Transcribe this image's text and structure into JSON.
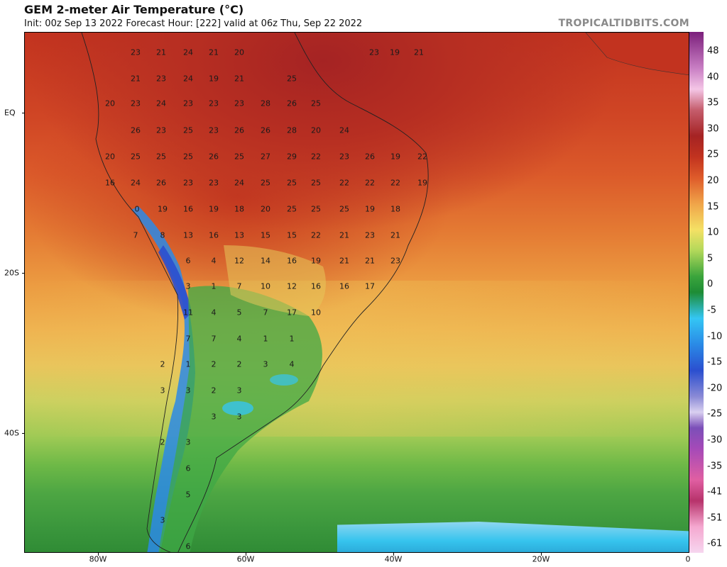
{
  "header": {
    "title": "GEM 2-meter Air Temperature (°C)",
    "subtitle": "Init: 00z Sep 13 2022   Forecast Hour: [222]   valid at 06z Thu, Sep 22 2022",
    "credit": "TROPICALTIDBITS.COM"
  },
  "axes": {
    "lat_labels": [
      "EQ",
      "20S",
      "40S"
    ],
    "lon_labels": [
      "80W",
      "60W",
      "40W",
      "20W",
      "0"
    ]
  },
  "colorbar": {
    "labels": [
      "48",
      "40",
      "35",
      "30",
      "25",
      "20",
      "15",
      "10",
      "5",
      "0",
      "-5",
      "-10",
      "-15",
      "-20",
      "-25",
      "-30",
      "-35",
      "-41",
      "-51",
      "-61"
    ]
  },
  "map": {
    "colors": {
      "hot": "#a52323",
      "warm": "#e47a33",
      "mild": "#efb451",
      "cool": "#4da643",
      "cold": "#36c4ee",
      "frigid": "#2b4fcf"
    },
    "temp_labels": [
      "23",
      "21",
      "24",
      "21",
      "20",
      "23",
      "19",
      "21",
      "21",
      "23",
      "24",
      "19",
      "21",
      "25",
      "20",
      "23",
      "24",
      "23",
      "23",
      "23",
      "28",
      "26",
      "25",
      "26",
      "23",
      "25",
      "23",
      "26",
      "26",
      "28",
      "20",
      "24",
      "20",
      "25",
      "25",
      "25",
      "26",
      "25",
      "27",
      "29",
      "22",
      "23",
      "26",
      "19",
      "22",
      "16",
      "24",
      "26",
      "23",
      "23",
      "24",
      "25",
      "25",
      "25",
      "22",
      "22",
      "22",
      "19",
      "0",
      "19",
      "16",
      "19",
      "18",
      "20",
      "25",
      "25",
      "25",
      "19",
      "18",
      "7",
      "8",
      "13",
      "16",
      "13",
      "15",
      "15",
      "22",
      "21",
      "23",
      "21",
      "6",
      "4",
      "12",
      "14",
      "16",
      "19",
      "21",
      "21",
      "23",
      "3",
      "1",
      "7",
      "10",
      "12",
      "16",
      "16",
      "17",
      "11",
      "4",
      "5",
      "7",
      "17",
      "10",
      "7",
      "7",
      "4",
      "1",
      "1",
      "2",
      "1",
      "2",
      "2",
      "3",
      "4",
      "3",
      "3",
      "2",
      "3",
      "3",
      "3",
      "2",
      "3",
      "6",
      "5",
      "3",
      "6"
    ]
  }
}
